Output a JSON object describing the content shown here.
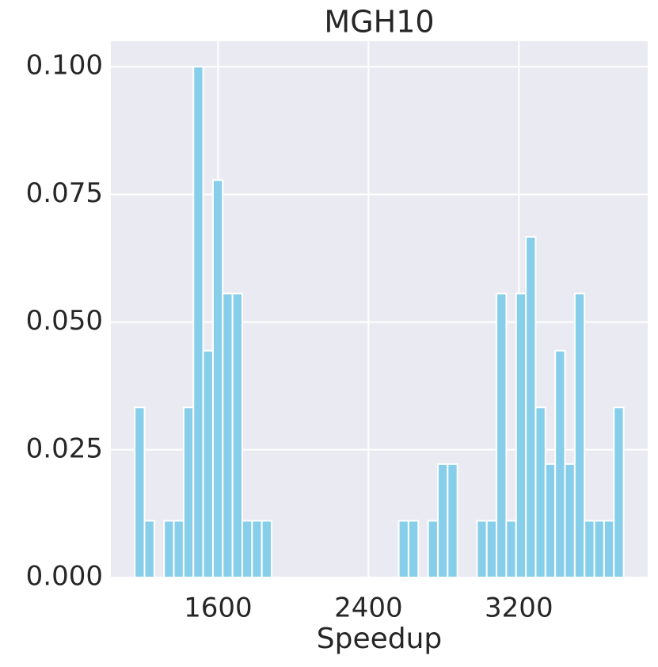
{
  "chart_data": {
    "type": "histogram",
    "title": "MGH10",
    "xlabel": "Speedup",
    "color": "#87ceeb",
    "bins": [
      1157,
      1209,
      1261,
      1313,
      1365,
      1417,
      1469,
      1521,
      1573,
      1625,
      1677,
      1729,
      1781,
      1833,
      1885,
      1937,
      1989,
      2041,
      2093,
      2145,
      2197,
      2249,
      2301,
      2353,
      2405,
      2457,
      2509,
      2561,
      2613,
      2665,
      2717,
      2769,
      2821,
      2873,
      2925,
      2977,
      3029,
      3081,
      3133,
      3185,
      3237,
      3289,
      3341,
      3393,
      3445,
      3497,
      3549,
      3601,
      3653,
      3705,
      3757
    ],
    "values": [
      0.0333,
      0.0111,
      0,
      0.0111,
      0.0111,
      0.0333,
      0.1,
      0.0444,
      0.0778,
      0.0556,
      0.0556,
      0.0111,
      0.0111,
      0.0111,
      0,
      0,
      0,
      0,
      0,
      0,
      0,
      0,
      0,
      0,
      0,
      0,
      0,
      0.0111,
      0.0111,
      0,
      0.0111,
      0.0222,
      0.0222,
      0,
      0,
      0.0111,
      0.0111,
      0.0556,
      0.0111,
      0.0556,
      0.0667,
      0.0333,
      0.0222,
      0.0444,
      0.0222,
      0.0556,
      0.0111,
      0.0111,
      0.0111,
      0.0333
    ],
    "xlim": [
      1030,
      3885
    ],
    "xticks": [
      1600,
      2400,
      3200
    ],
    "ylim": [
      0,
      0.105
    ],
    "yticks": [
      {
        "value": 0,
        "label": "0.000"
      },
      {
        "value": 0.025,
        "label": "0.025"
      },
      {
        "value": 0.05,
        "label": "0.050"
      },
      {
        "value": 0.075,
        "label": "0.075"
      },
      {
        "value": 0.1,
        "label": "0.100"
      }
    ],
    "grid": true
  }
}
